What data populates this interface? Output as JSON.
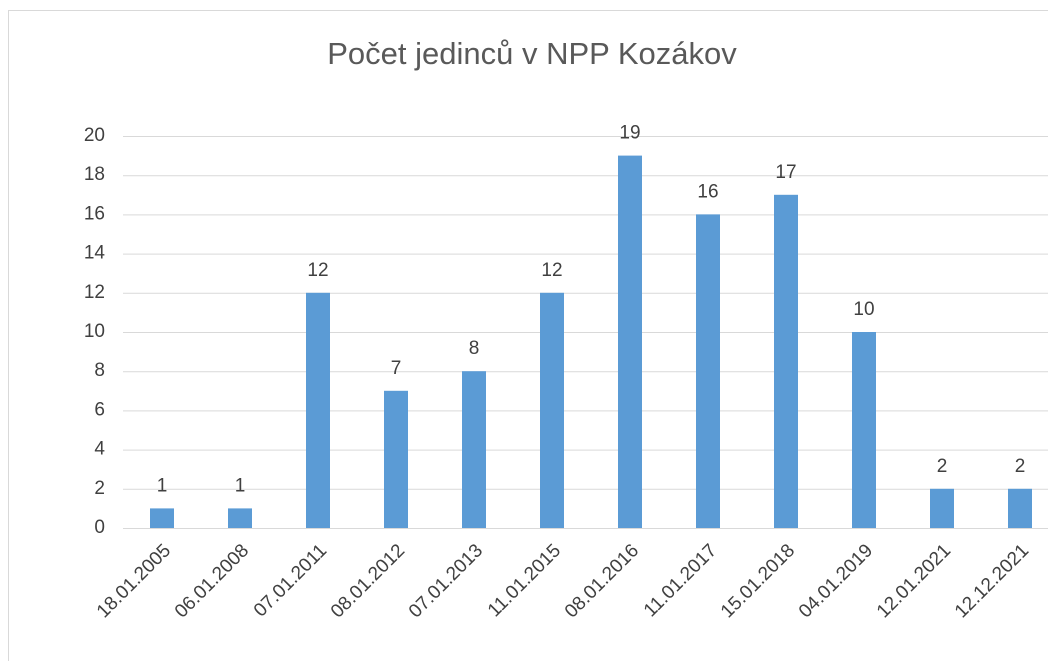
{
  "chart_data": {
    "type": "bar",
    "title": "Počet jedinců v NPP Kozákov",
    "categories": [
      "18.01.2005",
      "06.01.2008",
      "07.01.2011",
      "08.01.2012",
      "07.01.2013",
      "11.01.2015",
      "08.01.2016",
      "11.01.2017",
      "15.01.2018",
      "04.01.2019",
      "12.01.2021",
      "12.12.2021"
    ],
    "values": [
      1,
      1,
      12,
      7,
      8,
      12,
      19,
      16,
      17,
      10,
      2,
      2
    ],
    "color": "#5b9bd5",
    "ylim": [
      0,
      20
    ],
    "yticks": [
      0,
      2,
      4,
      6,
      8,
      10,
      12,
      14,
      16,
      18,
      20
    ],
    "grid": true
  }
}
